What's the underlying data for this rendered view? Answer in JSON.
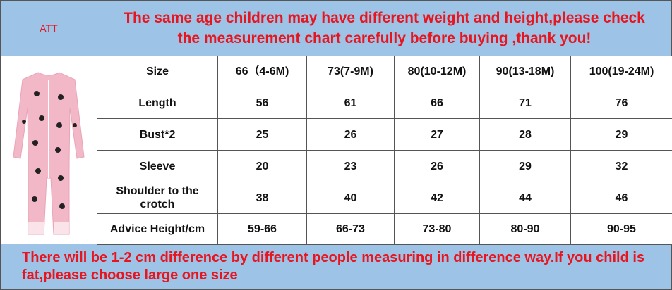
{
  "header": {
    "label": "ATT",
    "title": "The same age children may have different weight and height,please check the measurement chart carefully before buying ,thank you!"
  },
  "table": {
    "rows": [
      [
        "Size",
        "66（4-6M)",
        "73(7-9M)",
        "80(10-12M)",
        "90(13-18M)",
        "100(19-24M)"
      ],
      [
        "Length",
        56,
        61,
        66,
        71,
        76
      ],
      [
        "Bust*2",
        25,
        26,
        27,
        28,
        29
      ],
      [
        "Sleeve",
        20,
        23,
        26,
        29,
        32
      ],
      [
        "Shoulder to the crotch",
        38,
        40,
        42,
        44,
        46
      ],
      [
        "Advice Height/cm",
        "59-66",
        "66-73",
        "73-80",
        "80-90",
        "90-95"
      ]
    ]
  },
  "footer": {
    "text": "There will be 1-2 cm difference by different people measuring in difference way.If you child is fat,please choose large one size"
  }
}
